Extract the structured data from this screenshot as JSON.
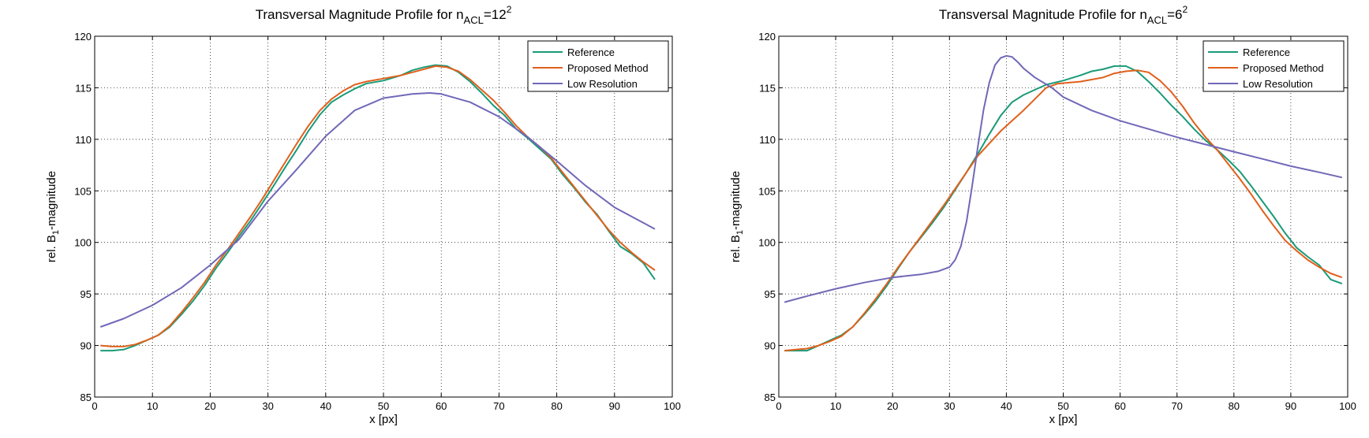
{
  "chart_data": [
    {
      "type": "line",
      "title_main": "Transversal Magnitude Profile for n",
      "title_sub": "ACL",
      "title_eq": "=12",
      "title_sup": "2",
      "xlabel": "x [px]",
      "ylabel_pre": "rel. B",
      "ylabel_sub": "1",
      "ylabel_post": "-magnitude",
      "xlim": [
        0,
        100
      ],
      "ylim": [
        85,
        120
      ],
      "xticks": [
        0,
        10,
        20,
        30,
        40,
        50,
        60,
        70,
        80,
        90,
        100
      ],
      "yticks": [
        85,
        90,
        95,
        100,
        105,
        110,
        115,
        120
      ],
      "grid": true,
      "legend_position": "top-right",
      "series": [
        {
          "name": "Reference",
          "color": "#1a9a78",
          "points": [
            [
              1,
              89.5
            ],
            [
              3,
              89.5
            ],
            [
              5,
              89.6
            ],
            [
              7,
              90.0
            ],
            [
              9,
              90.5
            ],
            [
              11,
              91.0
            ],
            [
              13,
              91.8
            ],
            [
              15,
              93.0
            ],
            [
              17,
              94.3
            ],
            [
              19,
              95.8
            ],
            [
              21,
              97.5
            ],
            [
              23,
              99.0
            ],
            [
              25,
              100.6
            ],
            [
              27,
              102.1
            ],
            [
              29,
              103.8
            ],
            [
              31,
              105.5
            ],
            [
              33,
              107.3
            ],
            [
              35,
              109.0
            ],
            [
              37,
              110.8
            ],
            [
              39,
              112.4
            ],
            [
              41,
              113.6
            ],
            [
              43,
              114.3
            ],
            [
              45,
              114.9
            ],
            [
              47,
              115.4
            ],
            [
              50,
              115.7
            ],
            [
              53,
              116.2
            ],
            [
              55,
              116.7
            ],
            [
              57,
              117.0
            ],
            [
              59,
              117.2
            ],
            [
              61,
              117.1
            ],
            [
              63,
              116.5
            ],
            [
              65,
              115.6
            ],
            [
              67,
              114.5
            ],
            [
              69,
              113.3
            ],
            [
              71,
              112.3
            ],
            [
              73,
              111.0
            ],
            [
              75,
              110.1
            ],
            [
              77,
              109.1
            ],
            [
              79,
              108.1
            ],
            [
              81,
              106.6
            ],
            [
              83,
              105.3
            ],
            [
              85,
              103.9
            ],
            [
              87,
              102.7
            ],
            [
              89,
              101.1
            ],
            [
              91,
              99.6
            ],
            [
              93,
              98.9
            ],
            [
              95,
              98.0
            ],
            [
              97,
              96.4
            ]
          ]
        },
        {
          "name": "Proposed Method",
          "color": "#e0601c",
          "points": [
            [
              1,
              90.0
            ],
            [
              3,
              89.9
            ],
            [
              5,
              89.9
            ],
            [
              7,
              90.1
            ],
            [
              9,
              90.5
            ],
            [
              11,
              91.0
            ],
            [
              13,
              91.9
            ],
            [
              15,
              93.2
            ],
            [
              17,
              94.6
            ],
            [
              19,
              96.1
            ],
            [
              21,
              97.8
            ],
            [
              23,
              99.3
            ],
            [
              25,
              100.9
            ],
            [
              27,
              102.5
            ],
            [
              29,
              104.2
            ],
            [
              31,
              106.0
            ],
            [
              33,
              107.8
            ],
            [
              35,
              109.6
            ],
            [
              37,
              111.3
            ],
            [
              39,
              112.8
            ],
            [
              41,
              113.9
            ],
            [
              43,
              114.7
            ],
            [
              45,
              115.3
            ],
            [
              47,
              115.6
            ],
            [
              50,
              115.9
            ],
            [
              53,
              116.2
            ],
            [
              55,
              116.5
            ],
            [
              57,
              116.8
            ],
            [
              59,
              117.1
            ],
            [
              61,
              117.0
            ],
            [
              63,
              116.6
            ],
            [
              65,
              115.8
            ],
            [
              67,
              114.8
            ],
            [
              69,
              113.8
            ],
            [
              71,
              112.6
            ],
            [
              73,
              111.3
            ],
            [
              75,
              110.2
            ],
            [
              77,
              109.3
            ],
            [
              79,
              108.2
            ],
            [
              81,
              106.8
            ],
            [
              83,
              105.4
            ],
            [
              85,
              104.0
            ],
            [
              87,
              102.6
            ],
            [
              89,
              101.2
            ],
            [
              91,
              100.0
            ],
            [
              93,
              99.0
            ],
            [
              95,
              98.1
            ],
            [
              97,
              97.3
            ]
          ]
        },
        {
          "name": "Low Resolution",
          "color": "#7068b8",
          "points": [
            [
              1,
              91.8
            ],
            [
              5,
              92.6
            ],
            [
              10,
              93.9
            ],
            [
              15,
              95.6
            ],
            [
              20,
              97.8
            ],
            [
              25,
              100.3
            ],
            [
              30,
              104.0
            ],
            [
              35,
              107.1
            ],
            [
              40,
              110.3
            ],
            [
              45,
              112.8
            ],
            [
              50,
              114.0
            ],
            [
              55,
              114.4
            ],
            [
              58,
              114.5
            ],
            [
              60,
              114.4
            ],
            [
              65,
              113.6
            ],
            [
              70,
              112.2
            ],
            [
              75,
              110.2
            ],
            [
              80,
              107.9
            ],
            [
              85,
              105.5
            ],
            [
              90,
              103.4
            ],
            [
              95,
              101.9
            ],
            [
              97,
              101.3
            ]
          ]
        }
      ]
    },
    {
      "type": "line",
      "title_main": "Transversal Magnitude Profile for n",
      "title_sub": "ACL",
      "title_eq": "=6",
      "title_sup": "2",
      "xlabel": "x [px]",
      "ylabel_pre": "rel. B",
      "ylabel_sub": "1",
      "ylabel_post": "-magnitude",
      "xlim": [
        0,
        100
      ],
      "ylim": [
        85,
        120
      ],
      "xticks": [
        0,
        10,
        20,
        30,
        40,
        50,
        60,
        70,
        80,
        90,
        100
      ],
      "yticks": [
        85,
        90,
        95,
        100,
        105,
        110,
        115,
        120
      ],
      "grid": true,
      "legend_position": "top-right",
      "series": [
        {
          "name": "Reference",
          "color": "#1a9a78",
          "points": [
            [
              1,
              89.5
            ],
            [
              3,
              89.5
            ],
            [
              5,
              89.5
            ],
            [
              7,
              90.0
            ],
            [
              9,
              90.5
            ],
            [
              11,
              91.0
            ],
            [
              13,
              91.8
            ],
            [
              15,
              93.0
            ],
            [
              17,
              94.3
            ],
            [
              19,
              95.8
            ],
            [
              21,
              97.5
            ],
            [
              23,
              99.1
            ],
            [
              25,
              100.5
            ],
            [
              27,
              101.9
            ],
            [
              29,
              103.4
            ],
            [
              31,
              105.1
            ],
            [
              33,
              106.8
            ],
            [
              35,
              108.6
            ],
            [
              37,
              110.5
            ],
            [
              39,
              112.3
            ],
            [
              41,
              113.6
            ],
            [
              43,
              114.3
            ],
            [
              45,
              114.8
            ],
            [
              47,
              115.3
            ],
            [
              50,
              115.7
            ],
            [
              53,
              116.2
            ],
            [
              55,
              116.6
            ],
            [
              57,
              116.8
            ],
            [
              59,
              117.1
            ],
            [
              61,
              117.1
            ],
            [
              63,
              116.6
            ],
            [
              65,
              115.6
            ],
            [
              67,
              114.5
            ],
            [
              69,
              113.3
            ],
            [
              71,
              112.2
            ],
            [
              73,
              111.0
            ],
            [
              75,
              109.9
            ],
            [
              77,
              109.0
            ],
            [
              79,
              108.0
            ],
            [
              81,
              106.9
            ],
            [
              83,
              105.5
            ],
            [
              85,
              104.0
            ],
            [
              87,
              102.5
            ],
            [
              89,
              100.9
            ],
            [
              91,
              99.5
            ],
            [
              93,
              98.6
            ],
            [
              95,
              97.8
            ],
            [
              97,
              96.4
            ],
            [
              99,
              96.0
            ]
          ]
        },
        {
          "name": "Proposed Method",
          "color": "#e0601c",
          "points": [
            [
              1,
              89.5
            ],
            [
              3,
              89.6
            ],
            [
              5,
              89.7
            ],
            [
              7,
              90.0
            ],
            [
              9,
              90.4
            ],
            [
              11,
              90.9
            ],
            [
              13,
              91.8
            ],
            [
              15,
              93.1
            ],
            [
              17,
              94.5
            ],
            [
              19,
              96.0
            ],
            [
              21,
              97.6
            ],
            [
              23,
              99.1
            ],
            [
              25,
              100.6
            ],
            [
              27,
              102.1
            ],
            [
              29,
              103.6
            ],
            [
              31,
              105.2
            ],
            [
              33,
              106.8
            ],
            [
              35,
              108.4
            ],
            [
              37,
              109.6
            ],
            [
              39,
              110.8
            ],
            [
              41,
              111.8
            ],
            [
              43,
              112.8
            ],
            [
              45,
              113.9
            ],
            [
              47,
              115.0
            ],
            [
              49,
              115.4
            ],
            [
              51,
              115.5
            ],
            [
              53,
              115.6
            ],
            [
              55,
              115.8
            ],
            [
              57,
              116.0
            ],
            [
              59,
              116.4
            ],
            [
              61,
              116.6
            ],
            [
              63,
              116.7
            ],
            [
              65,
              116.5
            ],
            [
              67,
              115.7
            ],
            [
              69,
              114.6
            ],
            [
              71,
              113.2
            ],
            [
              73,
              111.6
            ],
            [
              75,
              110.2
            ],
            [
              77,
              109.0
            ],
            [
              79,
              107.6
            ],
            [
              81,
              106.2
            ],
            [
              83,
              104.7
            ],
            [
              85,
              103.1
            ],
            [
              87,
              101.6
            ],
            [
              89,
              100.2
            ],
            [
              91,
              99.2
            ],
            [
              93,
              98.3
            ],
            [
              95,
              97.6
            ],
            [
              97,
              97.0
            ],
            [
              99,
              96.6
            ]
          ]
        },
        {
          "name": "Low Resolution",
          "color": "#7068b8",
          "points": [
            [
              1,
              94.2
            ],
            [
              5,
              94.8
            ],
            [
              10,
              95.5
            ],
            [
              15,
              96.1
            ],
            [
              20,
              96.6
            ],
            [
              25,
              96.9
            ],
            [
              28,
              97.2
            ],
            [
              30,
              97.6
            ],
            [
              31,
              98.3
            ],
            [
              32,
              99.6
            ],
            [
              33,
              102.0
            ],
            [
              34,
              105.5
            ],
            [
              35,
              109.3
            ],
            [
              36,
              112.9
            ],
            [
              37,
              115.5
            ],
            [
              38,
              117.2
            ],
            [
              39,
              117.9
            ],
            [
              40,
              118.1
            ],
            [
              41,
              118.0
            ],
            [
              42,
              117.5
            ],
            [
              43,
              116.9
            ],
            [
              45,
              116.0
            ],
            [
              48,
              115.0
            ],
            [
              50,
              114.1
            ],
            [
              55,
              112.8
            ],
            [
              60,
              111.8
            ],
            [
              65,
              111.0
            ],
            [
              70,
              110.2
            ],
            [
              75,
              109.5
            ],
            [
              80,
              108.8
            ],
            [
              85,
              108.1
            ],
            [
              90,
              107.4
            ],
            [
              95,
              106.8
            ],
            [
              99,
              106.3
            ]
          ]
        }
      ]
    }
  ]
}
